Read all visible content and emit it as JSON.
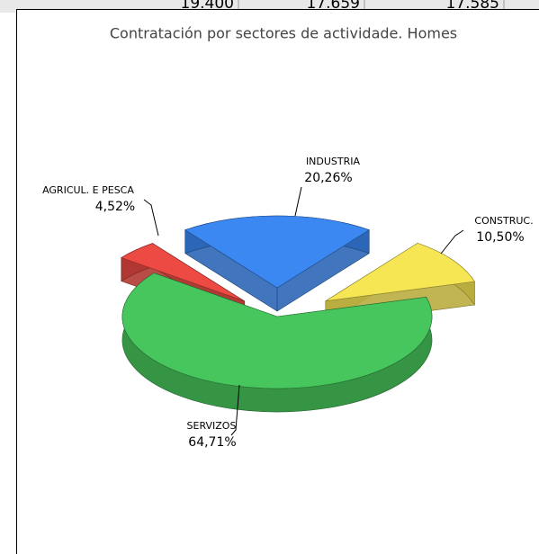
{
  "sheet_cells": [
    "19.400",
    "17.659",
    "17.585"
  ],
  "chart_data": {
    "type": "pie",
    "title": "Contratación por sectores de actividade. Homes",
    "categories": [
      "AGRICUL. E PESCA",
      "INDUSTRIA",
      "CONSTRUC.",
      "SERVIZOS"
    ],
    "values": [
      4.52,
      20.26,
      10.5,
      64.71
    ],
    "value_labels": [
      "4,52%",
      "20,26%",
      "10,50%",
      "64,71%"
    ],
    "colors": [
      "#ec4a42",
      "#3b88f2",
      "#f7e654",
      "#46c65c"
    ]
  }
}
